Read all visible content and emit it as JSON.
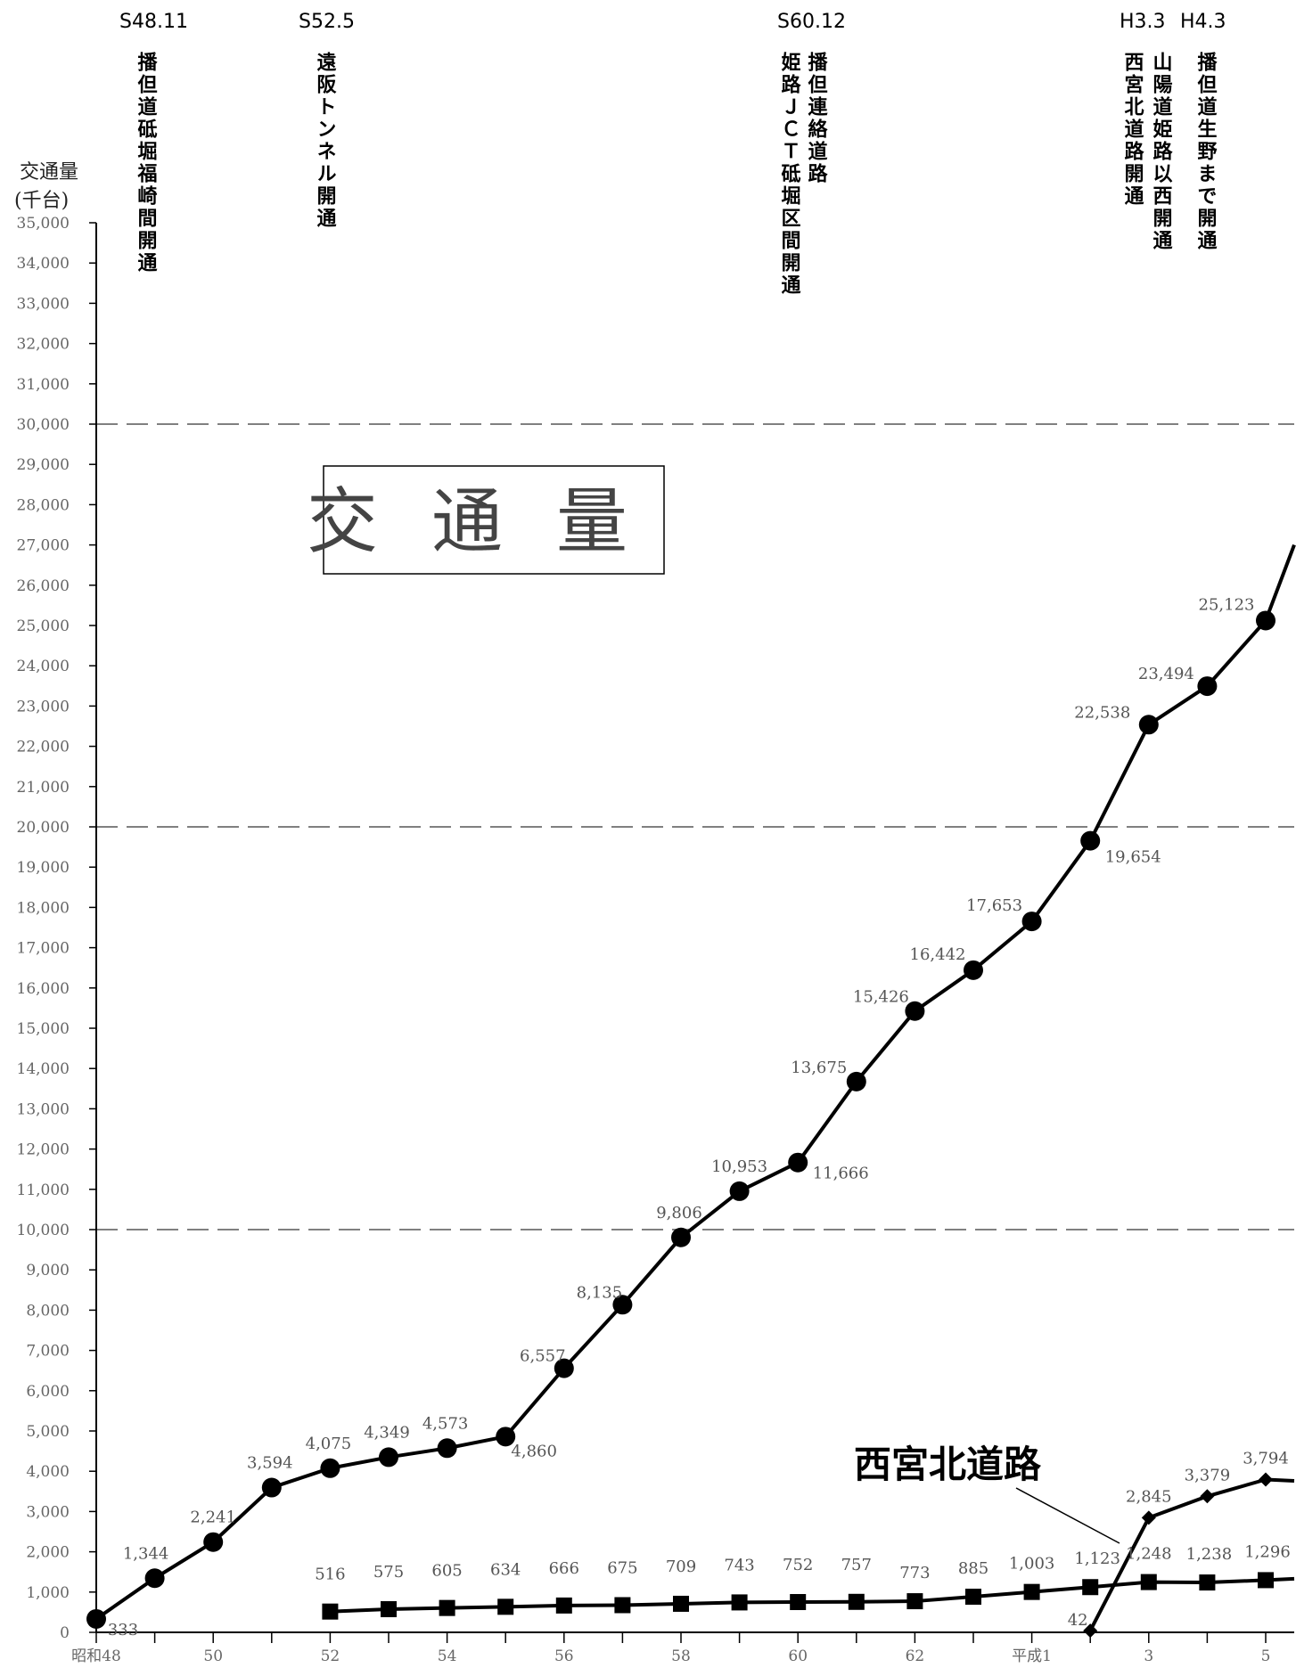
{
  "chart_data": {
    "type": "line",
    "title": "交通量",
    "ylabel": [
      "交通量",
      "(千台)"
    ],
    "ylim": [
      0,
      35000
    ],
    "ytick_labels": [
      "0",
      "1,000",
      "2,000",
      "3,000",
      "4,000",
      "5,000",
      "6,000",
      "7,000",
      "8,000",
      "9,000",
      "10,000",
      "11,000",
      "12,000",
      "13,000",
      "14,000",
      "15,000",
      "16,000",
      "17,000",
      "18,000",
      "19,000",
      "20,000",
      "21,000",
      "22,000",
      "23,000",
      "24,000",
      "25,000",
      "26,000",
      "27,000",
      "28,000",
      "29,000",
      "30,000",
      "31,000",
      "32,000",
      "33,000",
      "34,000",
      "35,000"
    ],
    "major_gridlines": [
      10000,
      20000,
      30000
    ],
    "x_tick_labels": [
      {
        "pos": 0,
        "label": "昭和48"
      },
      {
        "pos": 2,
        "label": "50"
      },
      {
        "pos": 4,
        "label": "52"
      },
      {
        "pos": 6,
        "label": "54"
      },
      {
        "pos": 8,
        "label": "56"
      },
      {
        "pos": 10,
        "label": "58"
      },
      {
        "pos": 12,
        "label": "60"
      },
      {
        "pos": 14,
        "label": "62"
      },
      {
        "pos": 16,
        "label": "平成1"
      },
      {
        "pos": 18,
        "label": "3"
      },
      {
        "pos": 20,
        "label": "5"
      }
    ],
    "series": [
      {
        "marker": "circle",
        "x": [
          0,
          1,
          2,
          3,
          4,
          5,
          6,
          7,
          8,
          9,
          10,
          11,
          12,
          13,
          14,
          15,
          16,
          17,
          18,
          19,
          20
        ],
        "values": [
          333,
          1344,
          2241,
          3594,
          4075,
          4349,
          4573,
          4860,
          6557,
          8135,
          9806,
          10953,
          11666,
          13675,
          15426,
          16442,
          17653,
          19654,
          22538,
          23494,
          25123
        ],
        "labels": [
          "333",
          "1,344",
          "2,241",
          "3,594",
          "4,075",
          "4,349",
          "4,573",
          "4,860",
          "6,557",
          "8,135",
          "9,806",
          "10,953",
          "11,666",
          "13,675",
          "15,426",
          "16,442",
          "17,653",
          "19,654",
          "22,538",
          "23,494",
          "25,123"
        ],
        "continues_to": 27000
      },
      {
        "marker": "square",
        "x": [
          4,
          5,
          6,
          7,
          8,
          9,
          10,
          11,
          12,
          13,
          14,
          15,
          16,
          17,
          18,
          19,
          20
        ],
        "values": [
          516,
          575,
          605,
          634,
          666,
          675,
          709,
          743,
          752,
          757,
          773,
          885,
          1003,
          1123,
          1248,
          1238,
          1296
        ],
        "labels": [
          "516",
          "575",
          "605",
          "634",
          "666",
          "675",
          "709",
          "743",
          "752",
          "757",
          "773",
          "885",
          "1,003",
          "1,123",
          "1,248",
          "1,238",
          "1,296"
        ],
        "continues_to": 1330
      },
      {
        "name": "西宮北道路",
        "marker": "diamond",
        "x": [
          17,
          18,
          19,
          20
        ],
        "values": [
          42,
          2845,
          3379,
          3794
        ],
        "labels": [
          "42",
          "2,845",
          "3,379",
          "3,794"
        ],
        "continues_to": 3760
      }
    ],
    "events": [
      {
        "date": "S48.11",
        "text": "播但道砥堀福崎間開通"
      },
      {
        "date": "S52.5",
        "text": "遠阪トンネル開通"
      },
      {
        "date": "S60.12",
        "text": "姫路ＪＣＴ砥堀区間開通",
        "text2": "播但連絡道路"
      },
      {
        "date": "H3.3",
        "text": "西宮北道路開通",
        "text2": "山陽道姫路以西開通"
      },
      {
        "date": "H4.3",
        "text": "播但道生野まで開通"
      }
    ]
  }
}
